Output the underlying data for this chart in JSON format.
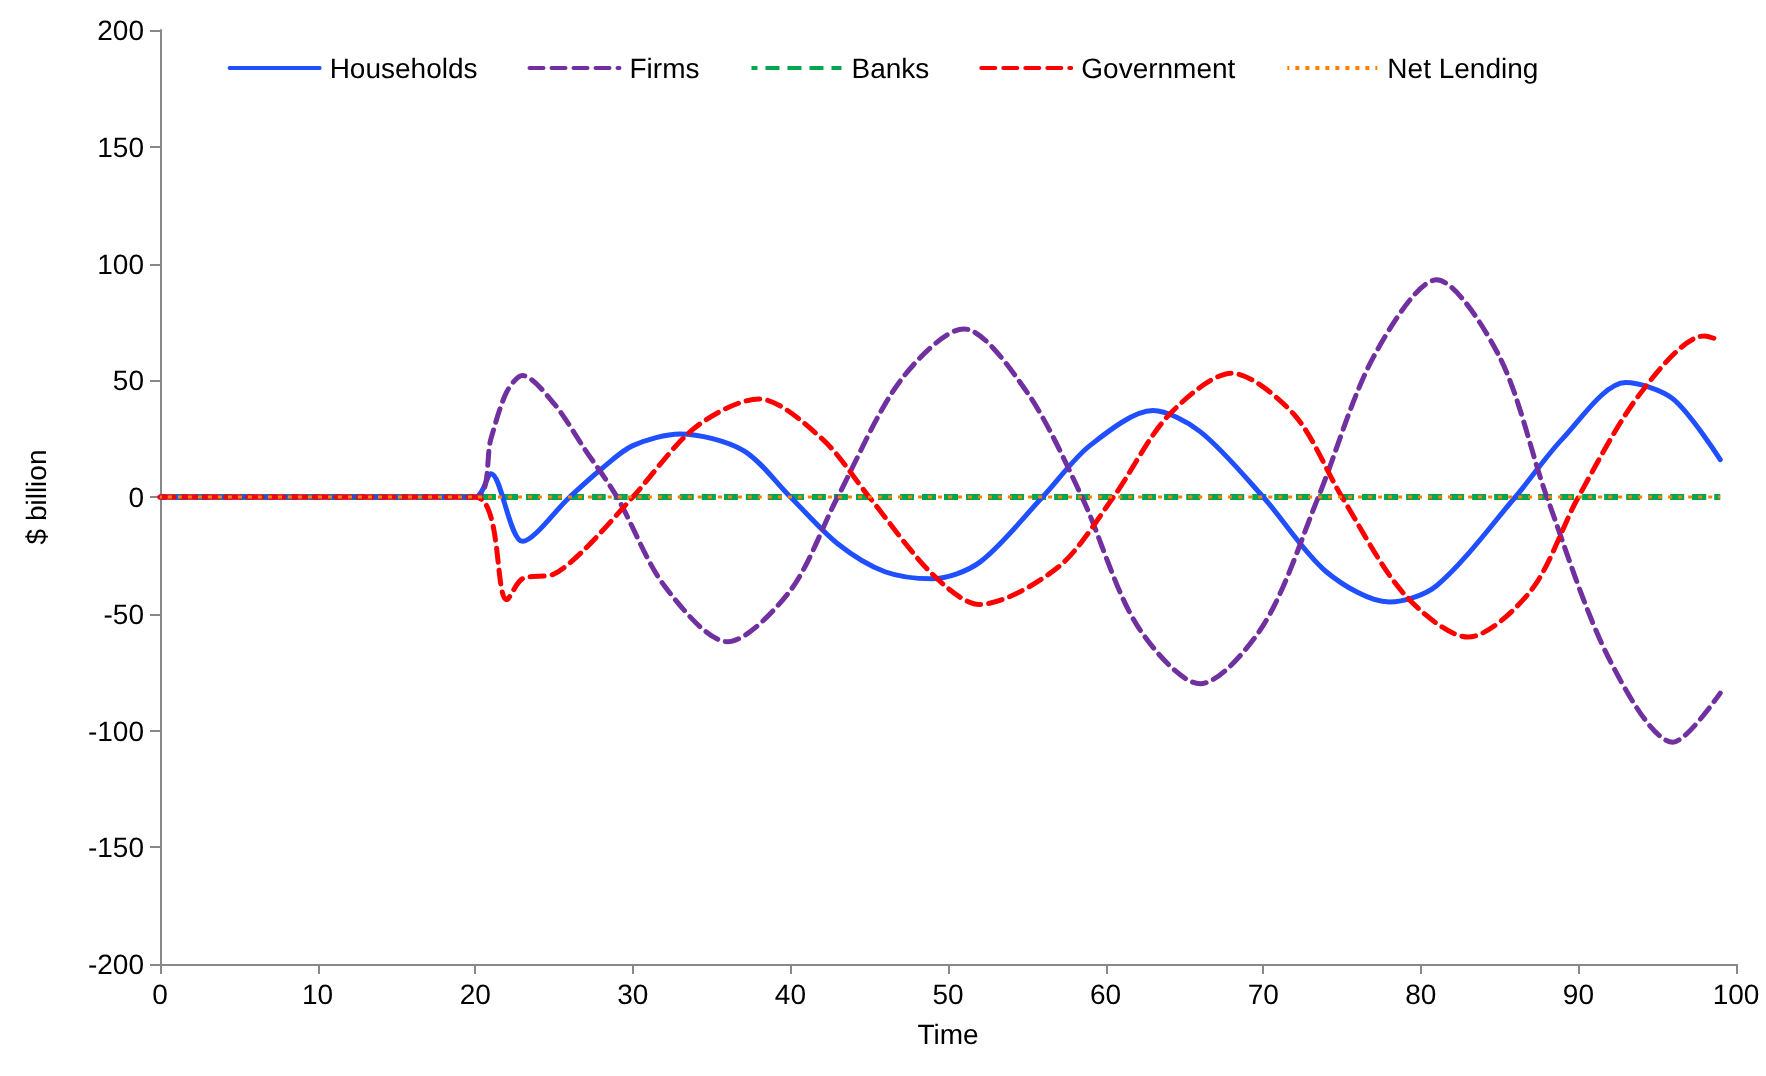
{
  "chart_data": {
    "type": "line",
    "xlabel": "Time",
    "ylabel": "$ billion",
    "xlim": [
      0,
      100
    ],
    "xticks": [
      0,
      10,
      20,
      30,
      40,
      50,
      60,
      70,
      80,
      90,
      100
    ],
    "ylim": [
      -200,
      200
    ],
    "yticks": [
      -200,
      -150,
      -100,
      -50,
      0,
      50,
      100,
      150,
      200
    ],
    "grid": false,
    "legend": "top",
    "marker": "none",
    "series": [
      {
        "name": "Households",
        "color": "#1f4fff",
        "line_style": "solid",
        "x": [
          0,
          20,
          21,
          23,
          26,
          28,
          30,
          33,
          37,
          40,
          43,
          46,
          49,
          52,
          56,
          59,
          63,
          66,
          70,
          74,
          78,
          81,
          86,
          89,
          93,
          96,
          99
        ],
        "values": [
          0,
          0,
          10,
          -19,
          0,
          12,
          22,
          27,
          20,
          0,
          -20,
          -32,
          -35,
          -28,
          0,
          22,
          37,
          28,
          0,
          -32,
          -45,
          -38,
          0,
          25,
          49,
          42,
          16
        ]
      },
      {
        "name": "Firms",
        "color": "#7030a0",
        "line_style": "dashed",
        "x": [
          0,
          20,
          21,
          22,
          23,
          25,
          27,
          29,
          32,
          36,
          40,
          43,
          47,
          51,
          55,
          58.5,
          62,
          66,
          70,
          73.5,
          77,
          81,
          85,
          88,
          92,
          96,
          99
        ],
        "values": [
          0,
          0,
          25,
          45,
          52,
          40,
          20,
          0,
          -38,
          -62,
          -40,
          0,
          50,
          72,
          45,
          0,
          -55,
          -80,
          -55,
          0,
          60,
          93,
          60,
          0,
          -70,
          -105,
          -84
        ]
      },
      {
        "name": "Banks",
        "color": "#00a651",
        "line_style": "dashed",
        "x": [
          0,
          99
        ],
        "values": [
          0,
          0
        ]
      },
      {
        "name": "Government",
        "color": "#ff0000",
        "line_style": "dashed",
        "x": [
          0,
          20,
          22,
          23,
          25,
          27,
          30,
          34,
          38,
          42,
          45,
          49,
          52,
          57,
          60.5,
          64,
          68,
          72,
          75,
          79,
          83,
          87,
          90,
          94,
          98,
          99
        ],
        "values": [
          0,
          0,
          -44,
          -35,
          -33,
          -22,
          0,
          30,
          42,
          25,
          0,
          -33,
          -46,
          -30,
          0,
          35,
          53,
          35,
          0,
          -42,
          -60,
          -40,
          0,
          45,
          69,
          67
        ]
      },
      {
        "name": "Net Lending",
        "color": "#ff8000",
        "line_style": "dotted",
        "x": [
          0,
          99
        ],
        "values": [
          0,
          0
        ]
      }
    ]
  }
}
